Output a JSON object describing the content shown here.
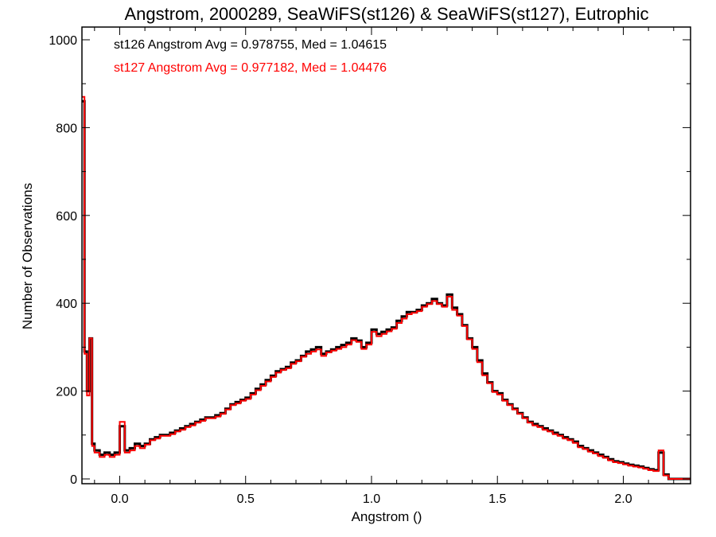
{
  "chart_data": {
    "type": "line",
    "title": "Angstrom, 2000289, SeaWiFS(st126) & SeaWiFS(st127), Eutrophic",
    "xlabel": "Angstrom ()",
    "ylabel": "Number of Observations",
    "xlim": [
      -0.15,
      2.25
    ],
    "ylim": [
      0,
      1000
    ],
    "xticks": [
      "0.0",
      "0.5",
      "1.0",
      "1.5",
      "2.0"
    ],
    "yticks": [
      "0",
      "200",
      "400",
      "600",
      "800",
      "1000"
    ],
    "grid": false,
    "annotations": [
      {
        "text": "st126 Angstrom Avg = 0.978755, Med = 1.04615",
        "color": "#000000"
      },
      {
        "text": "st127 Angstrom Avg = 0.977182, Med = 1.04476",
        "color": "#ff0000"
      }
    ],
    "series": [
      {
        "color": "#000000",
        "x": [
          -0.15,
          -0.14,
          -0.13,
          -0.12,
          -0.11,
          -0.1,
          -0.08,
          -0.06,
          -0.04,
          -0.02,
          0.0,
          0.02,
          0.04,
          0.06,
          0.08,
          0.1,
          0.12,
          0.14,
          0.16,
          0.18,
          0.2,
          0.22,
          0.24,
          0.26,
          0.28,
          0.3,
          0.32,
          0.34,
          0.36,
          0.38,
          0.4,
          0.42,
          0.44,
          0.46,
          0.48,
          0.5,
          0.52,
          0.54,
          0.56,
          0.58,
          0.6,
          0.62,
          0.64,
          0.66,
          0.68,
          0.7,
          0.72,
          0.74,
          0.76,
          0.78,
          0.8,
          0.82,
          0.84,
          0.86,
          0.88,
          0.9,
          0.92,
          0.94,
          0.96,
          0.98,
          1.0,
          1.02,
          1.04,
          1.06,
          1.08,
          1.1,
          1.12,
          1.14,
          1.16,
          1.18,
          1.2,
          1.22,
          1.24,
          1.26,
          1.28,
          1.3,
          1.32,
          1.34,
          1.36,
          1.38,
          1.4,
          1.42,
          1.44,
          1.46,
          1.48,
          1.5,
          1.52,
          1.54,
          1.56,
          1.58,
          1.6,
          1.62,
          1.64,
          1.66,
          1.68,
          1.7,
          1.72,
          1.74,
          1.76,
          1.78,
          1.8,
          1.82,
          1.84,
          1.86,
          1.88,
          1.9,
          1.92,
          1.94,
          1.96,
          1.98,
          2.0,
          2.02,
          2.04,
          2.06,
          2.08,
          2.1,
          2.12,
          2.14,
          2.16,
          2.18,
          2.2,
          2.25
        ],
        "values": [
          860,
          290,
          200,
          320,
          80,
          65,
          55,
          60,
          55,
          60,
          120,
          65,
          70,
          80,
          75,
          80,
          90,
          95,
          100,
          100,
          105,
          110,
          115,
          120,
          125,
          130,
          135,
          140,
          140,
          145,
          150,
          160,
          170,
          175,
          180,
          185,
          195,
          205,
          215,
          225,
          235,
          245,
          250,
          255,
          265,
          270,
          280,
          290,
          295,
          300,
          285,
          290,
          295,
          300,
          305,
          310,
          320,
          315,
          300,
          310,
          340,
          330,
          335,
          340,
          345,
          360,
          370,
          380,
          380,
          385,
          395,
          400,
          410,
          400,
          395,
          420,
          390,
          375,
          350,
          320,
          300,
          270,
          240,
          220,
          200,
          195,
          180,
          170,
          160,
          150,
          140,
          130,
          125,
          120,
          115,
          110,
          105,
          100,
          95,
          90,
          85,
          75,
          70,
          65,
          60,
          55,
          50,
          45,
          40,
          38,
          35,
          32,
          30,
          28,
          25,
          22,
          20,
          60,
          10,
          0,
          0,
          0
        ]
      },
      {
        "color": "#ff0000",
        "x": [
          -0.15,
          -0.14,
          -0.13,
          -0.12,
          -0.11,
          -0.1,
          -0.08,
          -0.06,
          -0.04,
          -0.02,
          0.0,
          0.02,
          0.04,
          0.06,
          0.08,
          0.1,
          0.12,
          0.14,
          0.16,
          0.18,
          0.2,
          0.22,
          0.24,
          0.26,
          0.28,
          0.3,
          0.32,
          0.34,
          0.36,
          0.38,
          0.4,
          0.42,
          0.44,
          0.46,
          0.48,
          0.5,
          0.52,
          0.54,
          0.56,
          0.58,
          0.6,
          0.62,
          0.64,
          0.66,
          0.68,
          0.7,
          0.72,
          0.74,
          0.76,
          0.78,
          0.8,
          0.82,
          0.84,
          0.86,
          0.88,
          0.9,
          0.92,
          0.94,
          0.96,
          0.98,
          1.0,
          1.02,
          1.04,
          1.06,
          1.08,
          1.1,
          1.12,
          1.14,
          1.16,
          1.18,
          1.2,
          1.22,
          1.24,
          1.26,
          1.28,
          1.3,
          1.32,
          1.34,
          1.36,
          1.38,
          1.4,
          1.42,
          1.44,
          1.46,
          1.48,
          1.5,
          1.52,
          1.54,
          1.56,
          1.58,
          1.6,
          1.62,
          1.64,
          1.66,
          1.68,
          1.7,
          1.72,
          1.74,
          1.76,
          1.78,
          1.8,
          1.82,
          1.84,
          1.86,
          1.88,
          1.9,
          1.92,
          1.94,
          1.96,
          1.98,
          2.0,
          2.02,
          2.04,
          2.06,
          2.08,
          2.1,
          2.12,
          2.14,
          2.16,
          2.18,
          2.2,
          2.25
        ],
        "values": [
          870,
          285,
          190,
          320,
          75,
          60,
          50,
          55,
          50,
          55,
          130,
          60,
          65,
          75,
          70,
          78,
          88,
          92,
          98,
          98,
          102,
          108,
          112,
          118,
          122,
          128,
          132,
          138,
          138,
          142,
          148,
          158,
          168,
          172,
          178,
          182,
          192,
          202,
          212,
          222,
          232,
          242,
          248,
          252,
          262,
          268,
          278,
          285,
          290,
          295,
          280,
          288,
          292,
          296,
          300,
          306,
          316,
          312,
          296,
          306,
          335,
          325,
          330,
          336,
          342,
          355,
          365,
          375,
          378,
          382,
          392,
          398,
          405,
          398,
          392,
          415,
          385,
          372,
          348,
          318,
          296,
          266,
          236,
          218,
          198,
          192,
          178,
          168,
          158,
          148,
          138,
          128,
          122,
          118,
          112,
          108,
          102,
          98,
          92,
          88,
          82,
          72,
          68,
          62,
          58,
          52,
          48,
          42,
          38,
          36,
          33,
          30,
          28,
          26,
          23,
          20,
          18,
          65,
          8,
          0,
          0,
          0
        ]
      }
    ]
  }
}
